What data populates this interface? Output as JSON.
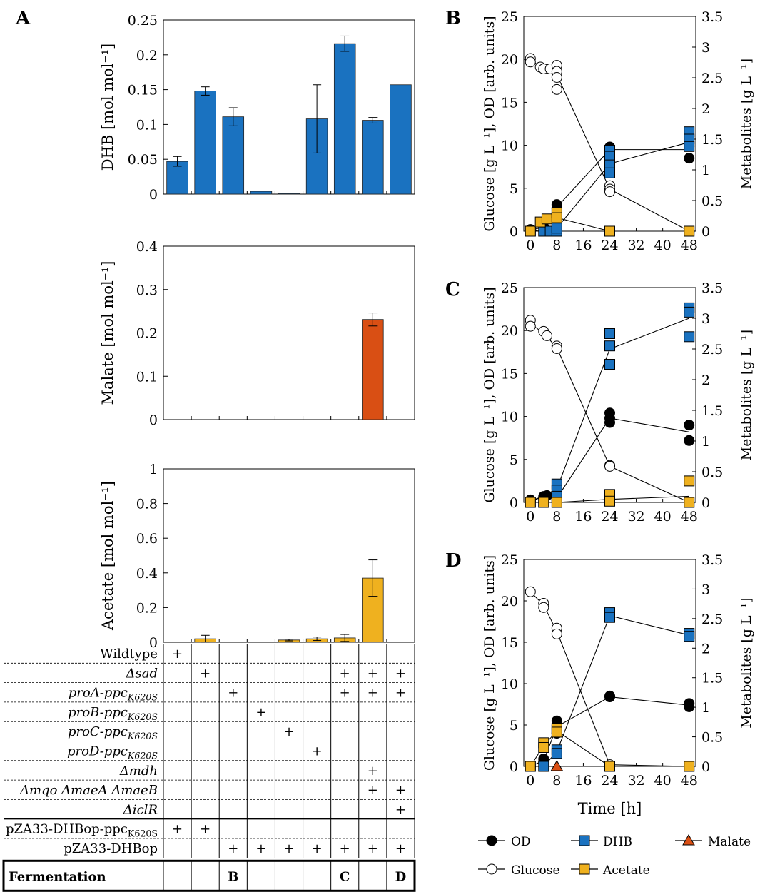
{
  "panel_labels": {
    "a": "A",
    "b": "B",
    "c": "C",
    "d": "D"
  },
  "colors": {
    "dhb": "#1a72c0",
    "malate": "#d94f14",
    "acetate": "#efb11f",
    "od": "#000000",
    "glucose": "#ffffff"
  },
  "axis_titles": {
    "left_y": "Glucose [g L⁻¹], OD [arb. units]",
    "right_y": "Metabolites [g L⁻¹]",
    "time_x": "Time [h]"
  },
  "legend": {
    "od": "OD",
    "dhb": "DHB",
    "malate": "Malate",
    "glucose": "Glucose",
    "acetate": "Acetate"
  },
  "strain_table": {
    "rows": [
      {
        "label": "Wildtype",
        "marks": [
          1,
          0,
          0,
          0,
          0,
          0,
          0,
          0,
          0
        ]
      },
      {
        "label": "Δsad",
        "marks": [
          0,
          1,
          0,
          0,
          0,
          0,
          1,
          1,
          1
        ]
      },
      {
        "label": "proA-ppcK620S",
        "marks": [
          0,
          0,
          1,
          0,
          0,
          0,
          1,
          1,
          1
        ]
      },
      {
        "label": "proB-ppcK620S",
        "marks": [
          0,
          0,
          0,
          1,
          0,
          0,
          0,
          0,
          0
        ]
      },
      {
        "label": "proC-ppcK620S",
        "marks": [
          0,
          0,
          0,
          0,
          1,
          0,
          0,
          0,
          0
        ]
      },
      {
        "label": "proD-ppcK620S",
        "marks": [
          0,
          0,
          0,
          0,
          0,
          1,
          0,
          0,
          0
        ]
      },
      {
        "label": "Δmdh",
        "marks": [
          0,
          0,
          0,
          0,
          0,
          0,
          0,
          1,
          0
        ]
      },
      {
        "label": "Δmqo ΔmaeA ΔmaeB",
        "marks": [
          0,
          0,
          0,
          0,
          0,
          0,
          0,
          1,
          1
        ]
      },
      {
        "label": "ΔiclR",
        "marks": [
          0,
          0,
          0,
          0,
          0,
          0,
          0,
          0,
          1
        ]
      },
      {
        "label": "pZA33-DHBop-ppcK620S",
        "marks": [
          1,
          1,
          0,
          0,
          0,
          0,
          0,
          0,
          0
        ]
      },
      {
        "label": "pZA33-DHBop",
        "marks": [
          0,
          0,
          1,
          1,
          1,
          1,
          1,
          1,
          1
        ]
      }
    ],
    "mark_symbol": "+",
    "fermentation_label": "Fermentation",
    "fermentation_cells": [
      "",
      "",
      "B",
      "",
      "",
      "",
      "C",
      "",
      "D"
    ]
  },
  "chart_data": [
    {
      "id": "A-DHB",
      "type": "bar",
      "ylabel": "DHB [mol mol⁻¹]",
      "ylim": [
        0,
        0.25
      ],
      "yticks": [
        0,
        0.05,
        0.1,
        0.15,
        0.2,
        0.25
      ],
      "ytick_labels": [
        "0",
        "0.05",
        "0.1",
        "0.15",
        "0.2",
        "0.25"
      ],
      "values": [
        0.047,
        0.148,
        0.111,
        0.004,
        0.001,
        0.108,
        0.216,
        0.106,
        0.157
      ],
      "errors": [
        0.007,
        0.006,
        0.013,
        0.0,
        0.0,
        0.049,
        0.011,
        0.004,
        0.0
      ]
    },
    {
      "id": "A-Malate",
      "type": "bar",
      "ylabel": "Malate [mol mol⁻¹]",
      "ylim": [
        0,
        0.4
      ],
      "yticks": [
        0,
        0.1,
        0.2,
        0.3,
        0.4
      ],
      "ytick_labels": [
        "0",
        "0.1",
        "0.2",
        "0.3",
        "0.4"
      ],
      "values": [
        0,
        0,
        0,
        0,
        0,
        0,
        0,
        0.231,
        0
      ],
      "errors": [
        0,
        0,
        0,
        0,
        0,
        0,
        0,
        0.015,
        0
      ]
    },
    {
      "id": "A-Acetate",
      "type": "bar",
      "ylabel": "Acetate [mol mol⁻¹]",
      "ylim": [
        0,
        1
      ],
      "yticks": [
        0,
        0.2,
        0.4,
        0.6,
        0.8,
        1
      ],
      "ytick_labels": [
        "0",
        "0.2",
        "0.4",
        "0.6",
        "0.8",
        "1"
      ],
      "values": [
        0,
        0.02,
        0,
        0,
        0.013,
        0.02,
        0.025,
        0.37,
        0
      ],
      "errors": [
        0,
        0.02,
        0,
        0,
        0.005,
        0.01,
        0.02,
        0.105,
        0
      ]
    },
    {
      "id": "B",
      "type": "scatter",
      "xlim": [
        -2,
        50
      ],
      "xticks": [
        0,
        8,
        16,
        24,
        32,
        40,
        48
      ],
      "ylim_left": [
        0,
        25
      ],
      "yticks_left": [
        0,
        5,
        10,
        15,
        20,
        25
      ],
      "ylim_right": [
        0,
        3.5
      ],
      "yticks_right": [
        0,
        0.5,
        1,
        1.5,
        2,
        2.5,
        3,
        3.5
      ],
      "ytick_labels_right": [
        "0",
        "0.5",
        "1",
        "1.5",
        "2",
        "2.5",
        "3",
        "3.5"
      ],
      "series": [
        {
          "name": "Glucose",
          "axis": "left",
          "points": [
            [
              0,
              20.1
            ],
            [
              0,
              19.7
            ],
            [
              3,
              19.1
            ],
            [
              4,
              18.9
            ],
            [
              6,
              18.9
            ],
            [
              8,
              19.3
            ],
            [
              8,
              18.6
            ],
            [
              8,
              17.9
            ],
            [
              8,
              16.5
            ],
            [
              24,
              5.3
            ],
            [
              24,
              4.9
            ],
            [
              24,
              4.6
            ],
            [
              48,
              0
            ],
            [
              48,
              0
            ]
          ],
          "line": [
            [
              0,
              19.9
            ],
            [
              4,
              19
            ],
            [
              8,
              18.2
            ],
            [
              24,
              4.9
            ],
            [
              48,
              0
            ]
          ]
        },
        {
          "name": "OD",
          "axis": "left",
          "points": [
            [
              0,
              0
            ],
            [
              0,
              0.2
            ],
            [
              4,
              0.5
            ],
            [
              8,
              3.1
            ],
            [
              8,
              2.7
            ],
            [
              24,
              9.8
            ],
            [
              24,
              9.4
            ],
            [
              48,
              8.5
            ],
            [
              48,
              9.9
            ]
          ],
          "line": [
            [
              0,
              0.1
            ],
            [
              4,
              0.5
            ],
            [
              8,
              2.8
            ],
            [
              24,
              9.5
            ],
            [
              48,
              9.5
            ]
          ]
        },
        {
          "name": "DHB",
          "axis": "right",
          "points": [
            [
              0,
              0
            ],
            [
              4,
              0
            ],
            [
              6,
              0
            ],
            [
              8,
              0
            ],
            [
              8,
              0.05
            ],
            [
              24,
              1.32
            ],
            [
              24,
              1.22
            ],
            [
              24,
              1.08
            ],
            [
              24,
              0.95
            ],
            [
              48,
              1.62
            ],
            [
              48,
              1.5
            ],
            [
              48,
              1.38
            ]
          ],
          "line": [
            [
              0,
              0
            ],
            [
              8,
              0.05
            ],
            [
              24,
              1.1
            ],
            [
              48,
              1.45
            ]
          ]
        },
        {
          "name": "Acetate",
          "axis": "right",
          "points": [
            [
              0,
              0
            ],
            [
              3,
              0.15
            ],
            [
              5,
              0.2
            ],
            [
              8,
              0.3
            ],
            [
              8,
              0.22
            ],
            [
              24,
              0
            ],
            [
              48,
              0
            ]
          ],
          "line": [
            [
              0,
              0
            ],
            [
              4,
              0.17
            ],
            [
              8,
              0.22
            ],
            [
              24,
              0
            ],
            [
              48,
              0
            ]
          ]
        }
      ]
    },
    {
      "id": "C",
      "type": "scatter",
      "xlim": [
        -2,
        50
      ],
      "xticks": [
        0,
        8,
        16,
        24,
        32,
        40,
        48
      ],
      "ylim_left": [
        0,
        25
      ],
      "yticks_left": [
        0,
        5,
        10,
        15,
        20,
        25
      ],
      "ylim_right": [
        0,
        3.5
      ],
      "yticks_right": [
        0,
        0.5,
        1,
        1.5,
        2,
        2.5,
        3,
        3.5
      ],
      "ytick_labels_right": [
        "0",
        "0.5",
        "1",
        "1.5",
        "2",
        "2.5",
        "3",
        "3.5"
      ],
      "series": [
        {
          "name": "Glucose",
          "axis": "left",
          "points": [
            [
              0,
              21.2
            ],
            [
              0,
              20.5
            ],
            [
              4,
              19.9
            ],
            [
              5,
              19.4
            ],
            [
              8,
              18.2
            ],
            [
              8,
              17.9
            ],
            [
              24,
              4.3
            ],
            [
              24,
              4.2
            ],
            [
              48,
              0
            ],
            [
              48,
              0
            ]
          ],
          "line": [
            [
              0,
              20.8
            ],
            [
              4,
              19.7
            ],
            [
              8,
              18
            ],
            [
              24,
              4.2
            ],
            [
              48,
              0
            ]
          ]
        },
        {
          "name": "OD",
          "axis": "left",
          "points": [
            [
              0,
              0.1
            ],
            [
              0,
              0.3
            ],
            [
              4,
              0.7
            ],
            [
              5,
              0.8
            ],
            [
              8,
              0.4
            ],
            [
              24,
              10.4
            ],
            [
              24,
              9.8
            ],
            [
              24,
              9.3
            ],
            [
              48,
              9
            ],
            [
              48,
              7.2
            ]
          ],
          "line": [
            [
              0,
              0.2
            ],
            [
              4,
              0.7
            ],
            [
              8,
              0.5
            ],
            [
              24,
              9.8
            ],
            [
              48,
              8.2
            ]
          ]
        },
        {
          "name": "DHB",
          "axis": "right",
          "points": [
            [
              0,
              0
            ],
            [
              4,
              0
            ],
            [
              8,
              0.3
            ],
            [
              8,
              0.2
            ],
            [
              8,
              0.1
            ],
            [
              24,
              2.75
            ],
            [
              24,
              2.55
            ],
            [
              24,
              2.25
            ],
            [
              48,
              3.17
            ],
            [
              48,
              3.1
            ],
            [
              48,
              2.7
            ]
          ],
          "line": [
            [
              0,
              0
            ],
            [
              8,
              0.22
            ],
            [
              24,
              2.5
            ],
            [
              48,
              3.0
            ]
          ]
        },
        {
          "name": "Acetate",
          "axis": "right",
          "points": [
            [
              0,
              0
            ],
            [
              4,
              0
            ],
            [
              8,
              0
            ],
            [
              24,
              0.13
            ],
            [
              24,
              0.02
            ],
            [
              48,
              0.35
            ],
            [
              48,
              0
            ]
          ],
          "line": [
            [
              0,
              0
            ],
            [
              8,
              0
            ],
            [
              24,
              0.05
            ],
            [
              48,
              0.1
            ]
          ]
        }
      ]
    },
    {
      "id": "D",
      "type": "scatter",
      "xlim": [
        -2,
        50
      ],
      "xticks": [
        0,
        8,
        16,
        24,
        32,
        40,
        48
      ],
      "xlabel": "Time [h]",
      "ylim_left": [
        0,
        25
      ],
      "yticks_left": [
        0,
        5,
        10,
        15,
        20,
        25
      ],
      "ylim_right": [
        0,
        3.5
      ],
      "yticks_right": [
        0,
        0.5,
        1,
        1.5,
        2,
        2.5,
        3,
        3.5
      ],
      "ytick_labels_right": [
        "0",
        "0.5",
        "1",
        "1.5",
        "2",
        "2.5",
        "3",
        "3.5"
      ],
      "series": [
        {
          "name": "Glucose",
          "axis": "left",
          "points": [
            [
              0,
              21.1
            ],
            [
              4,
              19.7
            ],
            [
              4,
              19.2
            ],
            [
              8,
              16.7
            ],
            [
              8,
              16
            ],
            [
              24,
              0.2
            ],
            [
              48,
              0
            ]
          ],
          "line": [
            [
              0,
              21.1
            ],
            [
              4,
              19.5
            ],
            [
              8,
              16.3
            ],
            [
              24,
              0.2
            ],
            [
              48,
              0
            ]
          ]
        },
        {
          "name": "OD",
          "axis": "left",
          "points": [
            [
              0,
              0
            ],
            [
              4,
              0.6
            ],
            [
              4,
              0.9
            ],
            [
              8,
              5.5
            ],
            [
              8,
              4.9
            ],
            [
              8,
              4
            ],
            [
              24,
              8.5
            ],
            [
              24,
              8.4
            ],
            [
              48,
              7.6
            ],
            [
              48,
              7.2
            ]
          ],
          "line": [
            [
              0,
              0
            ],
            [
              4,
              0.7
            ],
            [
              8,
              4.8
            ],
            [
              24,
              8.4
            ],
            [
              48,
              7.4
            ]
          ]
        },
        {
          "name": "DHB",
          "axis": "right",
          "points": [
            [
              0,
              0
            ],
            [
              4,
              0
            ],
            [
              8,
              0.28
            ],
            [
              8,
              0.22
            ],
            [
              24,
              2.6
            ],
            [
              24,
              2.52
            ],
            [
              48,
              2.25
            ],
            [
              48,
              2.2
            ]
          ],
          "line": [
            [
              0,
              0
            ],
            [
              4,
              0
            ],
            [
              8,
              0.25
            ],
            [
              24,
              2.55
            ],
            [
              48,
              2.22
            ]
          ]
        },
        {
          "name": "Acetate",
          "axis": "right",
          "points": [
            [
              0,
              0
            ],
            [
              4,
              0.4
            ],
            [
              4,
              0.32
            ],
            [
              8,
              0.64
            ],
            [
              8,
              0.58
            ],
            [
              24,
              0
            ],
            [
              48,
              0
            ]
          ],
          "line": [
            [
              0,
              0
            ],
            [
              4,
              0.35
            ],
            [
              8,
              0.6
            ],
            [
              24,
              0
            ],
            [
              48,
              0
            ]
          ]
        },
        {
          "name": "Malate",
          "axis": "right",
          "points": [
            [
              8,
              0
            ]
          ],
          "line": []
        }
      ]
    }
  ]
}
